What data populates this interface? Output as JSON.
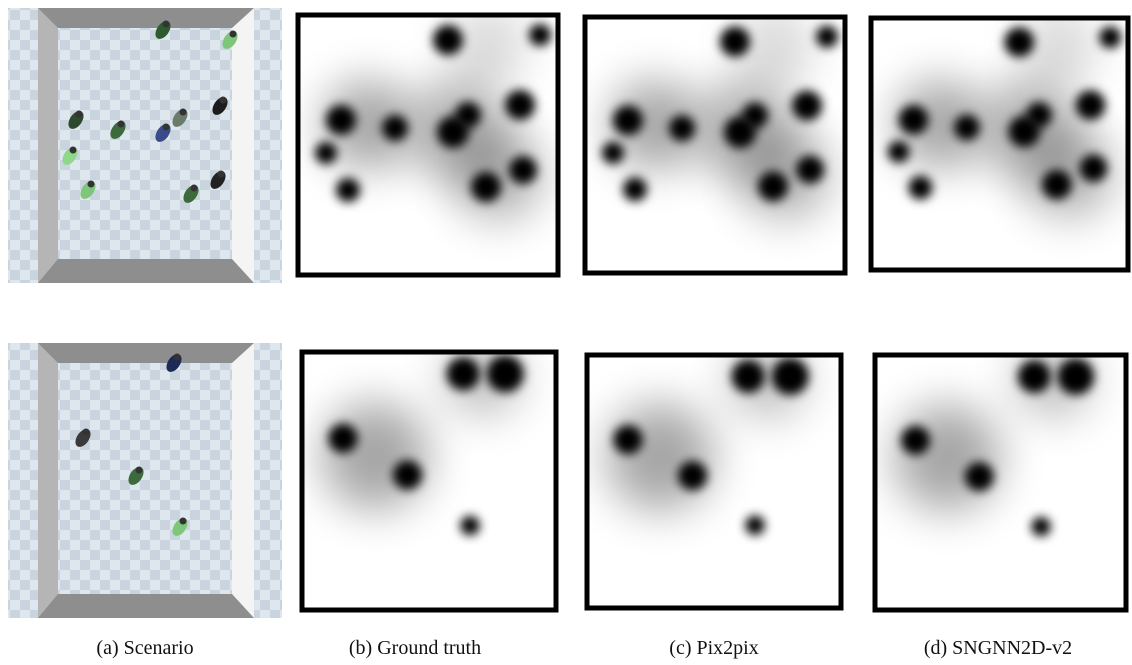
{
  "captions": [
    "(a) Scenario",
    "(b) Ground truth",
    "(c) Pix2pix",
    "(d) SNGNN2D-v2"
  ]
}
